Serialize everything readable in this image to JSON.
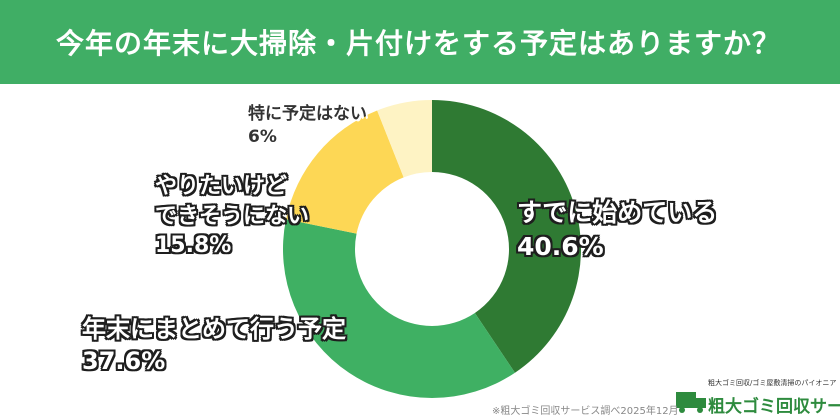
{
  "chart_data": {
    "type": "donut",
    "title": "今年の年末に大掃除・片付けをする予定はありますか？",
    "categories": [
      "すでに始めている",
      "年末にまとめて行う予定",
      "やりたいけど\nできそうにない",
      "特に予定はない"
    ],
    "values": [
      40.6,
      37.6,
      15.8,
      6
    ],
    "value_labels": [
      "40.6%",
      "37.6%",
      "15.8%",
      "6%"
    ],
    "colors": [
      "#2f7a33",
      "#3fb063",
      "#fdd755",
      "#fef3c4"
    ],
    "source": "※粗大ゴミ回収サービス調べ2025年12月"
  },
  "logo": {
    "tagline": "粗大ゴミ回収/ゴミ屋敷清掃のパイオニア",
    "name": "粗大ゴミ回収サービス"
  }
}
